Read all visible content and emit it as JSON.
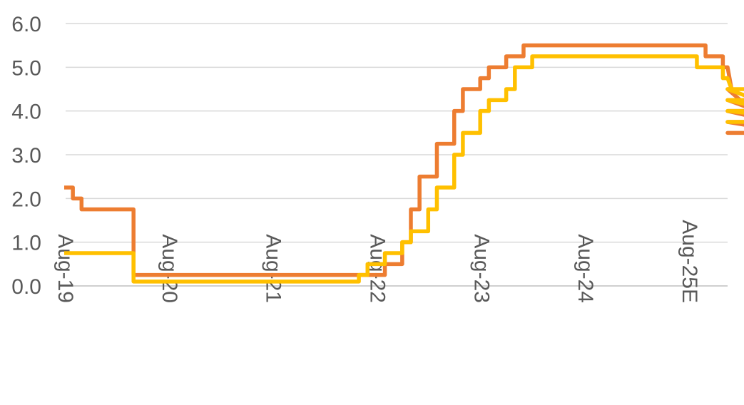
{
  "chart_data": {
    "type": "line",
    "title": "",
    "xlabel": "",
    "ylabel": "",
    "ylim": [
      0,
      6
    ],
    "y_ticks": [
      0,
      1,
      2,
      3,
      4,
      5,
      6
    ],
    "y_tick_labels": [
      "0.0",
      "1.0",
      "2.0",
      "3.0",
      "4.0",
      "5.0",
      "6.0"
    ],
    "x_tick_labels": [
      "Aug-19",
      "Aug-20",
      "Aug-21",
      "Aug-22",
      "Aug-23",
      "Aug-24",
      "Aug-25E"
    ],
    "x_label_orientation": "rotated-90",
    "grid": "horizontal",
    "legend": "none",
    "series": [
      {
        "color": "#ED7D31",
        "values": [
          2.25,
          2.0,
          1.75,
          1.75,
          1.75,
          1.75,
          1.75,
          1.75,
          0.25,
          0.25,
          0.25,
          0.25,
          0.25,
          0.25,
          0.25,
          0.25,
          0.25,
          0.25,
          0.25,
          0.25,
          0.25,
          0.25,
          0.25,
          0.25,
          0.25,
          0.25,
          0.25,
          0.25,
          0.25,
          0.25,
          0.25,
          0.25,
          0.25,
          0.25,
          0.25,
          0.25,
          0.25,
          0.5,
          0.5,
          1.0,
          1.75,
          2.5,
          2.5,
          3.25,
          3.25,
          4.0,
          4.5,
          4.5,
          4.75,
          5.0,
          5.0,
          5.25,
          5.25,
          5.5,
          5.5,
          5.5,
          5.5,
          5.5,
          5.5,
          5.5,
          5.5,
          5.5,
          5.5,
          5.5,
          5.5,
          5.5,
          5.5,
          5.5,
          5.5,
          5.5,
          5.5,
          5.5,
          5.5,
          5.5,
          5.25,
          5.25,
          5.0,
          4.5,
          4.25,
          4.25,
          4.0,
          4.0,
          3.75,
          3.75,
          3.5,
          3.5,
          3.5,
          3.5,
          3.5,
          3.5
        ]
      },
      {
        "color": "#FFC000",
        "values": [
          0.75,
          0.75,
          0.75,
          0.75,
          0.75,
          0.75,
          0.75,
          0.75,
          0.1,
          0.1,
          0.1,
          0.1,
          0.1,
          0.1,
          0.1,
          0.1,
          0.1,
          0.1,
          0.1,
          0.1,
          0.1,
          0.1,
          0.1,
          0.1,
          0.1,
          0.1,
          0.1,
          0.1,
          0.1,
          0.1,
          0.1,
          0.1,
          0.1,
          0.1,
          0.25,
          0.5,
          0.5,
          0.75,
          0.75,
          1.0,
          1.25,
          1.25,
          1.75,
          2.25,
          2.25,
          3.0,
          3.5,
          3.5,
          4.0,
          4.25,
          4.25,
          4.5,
          5.0,
          5.0,
          5.25,
          5.25,
          5.25,
          5.25,
          5.25,
          5.25,
          5.25,
          5.25,
          5.25,
          5.25,
          5.25,
          5.25,
          5.25,
          5.25,
          5.25,
          5.25,
          5.25,
          5.25,
          5.25,
          5.0,
          5.0,
          5.0,
          4.75,
          4.5,
          4.5,
          4.5,
          4.25,
          4.25,
          4.0,
          4.0,
          4.0,
          4.0,
          4.0,
          4.0,
          4.0,
          3.75,
          3.75
        ]
      }
    ]
  }
}
